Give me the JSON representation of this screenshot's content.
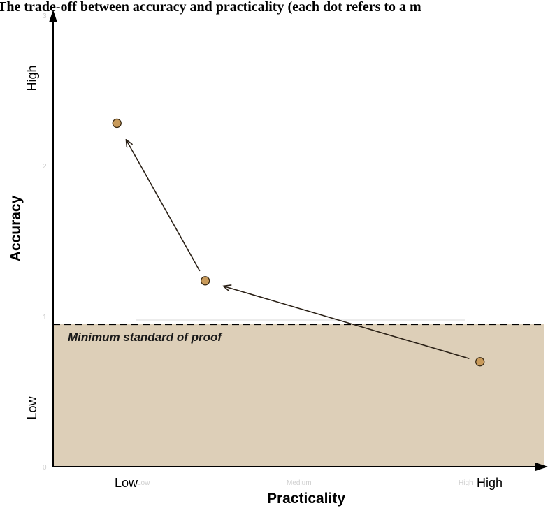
{
  "chart_data": {
    "type": "scatter",
    "title": "The trade-off between accuracy and practicality (each dot refers to a m",
    "xlabel": "Practicality",
    "ylabel": "Accuracy",
    "x_range": [
      0,
      1
    ],
    "y_range": [
      0,
      3
    ],
    "x_category_labels": [
      "Low",
      "High"
    ],
    "y_category_labels": [
      "Low",
      "High"
    ],
    "faint_x_ticks": [
      "Low",
      "Medium",
      "High"
    ],
    "faint_y_ticks": [
      "0",
      "1",
      "2",
      "3"
    ],
    "points": [
      {
        "x": 0.13,
        "y": 2.29
      },
      {
        "x": 0.31,
        "y": 1.24
      },
      {
        "x": 0.87,
        "y": 0.7
      }
    ],
    "arrows": [
      {
        "from": 2,
        "to": 1
      },
      {
        "from": 1,
        "to": 0
      }
    ],
    "threshold": {
      "y": 0.95,
      "label": "Minimum  standard  of proof",
      "style": "dashed",
      "fill_below": "#ddcfb8"
    },
    "colors": {
      "point_fill": "#c89a5a",
      "point_stroke": "#3a2a14",
      "shaded_region": "#ddcfb8",
      "arrow": "#2a2016"
    },
    "grid": false,
    "legend": "none"
  }
}
